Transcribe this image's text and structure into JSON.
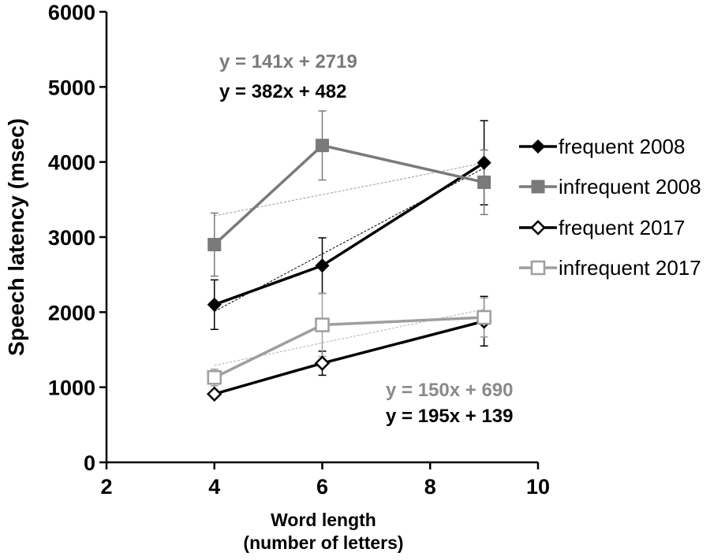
{
  "chart_data": {
    "type": "line",
    "xlabel_line1": "Word length",
    "xlabel_line2": "(number of letters)",
    "ylabel": "Speech latency (msec)",
    "xlim": [
      2,
      10
    ],
    "ylim": [
      0,
      6000
    ],
    "x_ticks": [
      "2",
      "4",
      "6",
      "8",
      "10"
    ],
    "y_ticks": [
      "0",
      "1000",
      "2000",
      "3000",
      "4000",
      "5000",
      "6000"
    ],
    "x": [
      4,
      6,
      9
    ],
    "legend_position": "right",
    "series": [
      {
        "name": "frequent 2008",
        "values": [
          2100,
          2620,
          3990
        ],
        "errors": [
          330,
          370,
          560
        ],
        "color": "#000000",
        "marker": "filled-diamond",
        "trend": {
          "slope": 382,
          "intercept": 482
        }
      },
      {
        "name": "infrequent 2008",
        "values": [
          2900,
          4220,
          3730
        ],
        "errors": [
          420,
          460,
          430
        ],
        "color": "#7a7a7a",
        "marker": "filled-square",
        "trend": {
          "slope": 141,
          "intercept": 2719
        }
      },
      {
        "name": "frequent 2017",
        "values": [
          910,
          1320,
          1880
        ],
        "errors": [
          0,
          160,
          330
        ],
        "color": "#000000",
        "marker": "open-diamond",
        "trend": {
          "slope": 195,
          "intercept": 139
        }
      },
      {
        "name": "infrequent 2017",
        "values": [
          1130,
          1830,
          1930
        ],
        "errors": [
          110,
          420,
          260
        ],
        "color": "#9e9e9e",
        "marker": "open-square",
        "trend": {
          "slope": 150,
          "intercept": 690
        }
      }
    ],
    "annotations": [
      {
        "text": "y = 141x + 2719",
        "color": "#7a7a7a"
      },
      {
        "text": "y = 382x + 482",
        "color": "#000000"
      },
      {
        "text": "y = 150x + 690",
        "color": "#8a8a8a"
      },
      {
        "text": "y = 195x + 139",
        "color": "#000000"
      }
    ]
  }
}
